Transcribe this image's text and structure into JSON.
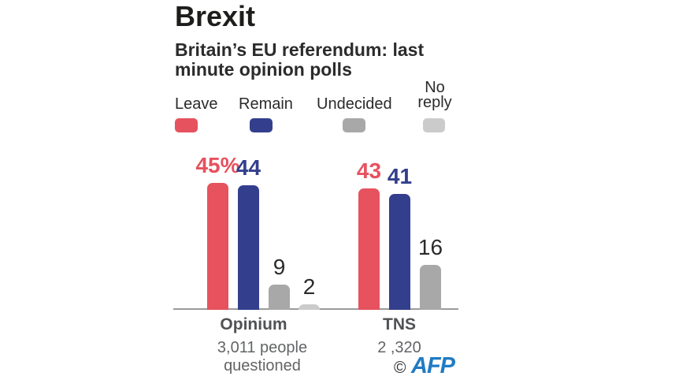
{
  "title": "Brexit",
  "subtitle": "Britain’s EU referendum: last\nminute opinion polls",
  "credit": {
    "copyright": "©",
    "agency": "AFP",
    "agency_color": "#1f7bc4"
  },
  "chart_data": {
    "type": "bar",
    "title": "Brexit",
    "subtitle": "Britain’s EU referendum: last minute opinion polls",
    "unit": "percent",
    "ylim": [
      0,
      45
    ],
    "grid": false,
    "legend_position": "top",
    "categories": [
      "Leave",
      "Remain",
      "Undecided",
      "No reply"
    ],
    "legend": [
      {
        "label": "Leave",
        "color": "#e6525e"
      },
      {
        "label": "Remain",
        "color": "#333f8d"
      },
      {
        "label": "Undecided",
        "color": "#a8a8a8"
      },
      {
        "label": "No\nreply",
        "color": "#cbcbcb"
      }
    ],
    "groups": [
      {
        "name": "Opinium",
        "note": "3,011 people\nquestioned",
        "bars": [
          {
            "category": "Leave",
            "value": 45,
            "label": "45%",
            "color": "#e6525e",
            "label_color": "#e6525e"
          },
          {
            "category": "Remain",
            "value": 44,
            "label": "44",
            "color": "#333f8d",
            "label_color": "#333f8d"
          },
          {
            "category": "Undecided",
            "value": 9,
            "label": "9",
            "color": "#a8a8a8",
            "label_color": "#2b2b2b"
          },
          {
            "category": "No reply",
            "value": 2,
            "label": "2",
            "color": "#cbcbcb",
            "label_color": "#2b2b2b"
          }
        ]
      },
      {
        "name": "TNS",
        "note": "2 ,320",
        "bars": [
          {
            "category": "Leave",
            "value": 43,
            "label": "43",
            "color": "#e6525e",
            "label_color": "#e6525e"
          },
          {
            "category": "Remain",
            "value": 41,
            "label": "41",
            "color": "#333f8d",
            "label_color": "#333f8d"
          },
          {
            "category": "Undecided",
            "value": 16,
            "label": "16",
            "color": "#a8a8a8",
            "label_color": "#2b2b2b"
          }
        ]
      }
    ]
  }
}
